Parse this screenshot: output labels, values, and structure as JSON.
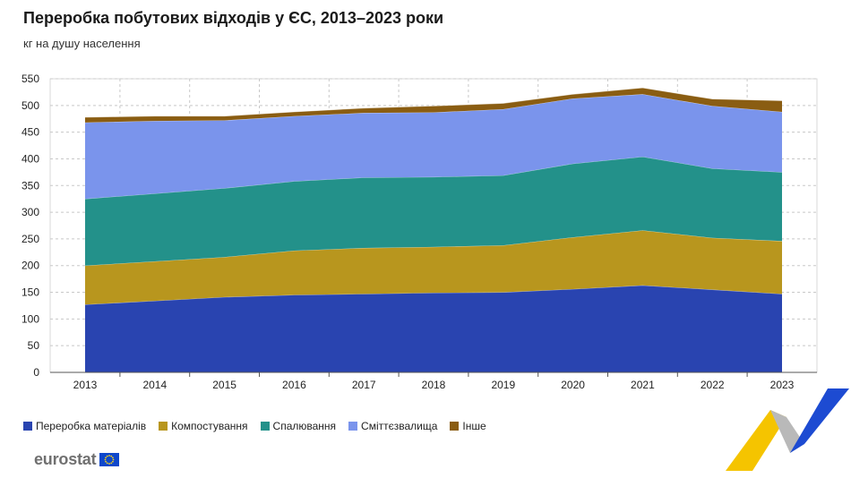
{
  "title": "Переробка побутових відходів у ЄС, 2013–2023 роки",
  "subtitle": "кг на душу населення",
  "brand": {
    "name": "eurostat",
    "logo_icon": "eu-flag-icon"
  },
  "chart_data": {
    "type": "area",
    "stacked": true,
    "title": "Переробка побутових відходів у ЄС, 2013–2023 роки",
    "ylabel": "кг на душу населення",
    "xlabel": "",
    "categories": [
      "2013",
      "2014",
      "2015",
      "2016",
      "2017",
      "2018",
      "2019",
      "2020",
      "2021",
      "2022",
      "2023"
    ],
    "ylim": [
      0,
      550
    ],
    "yticks": [
      0,
      50,
      100,
      150,
      200,
      250,
      300,
      350,
      400,
      450,
      500,
      550
    ],
    "grid": true,
    "legend_position": "bottom-left",
    "series": [
      {
        "name": "Переробка матеріалів",
        "color": "#2944b0",
        "values": [
          127,
          134,
          141,
          145,
          147,
          149,
          150,
          156,
          163,
          155,
          147
        ]
      },
      {
        "name": "Компостування",
        "color": "#b8961e",
        "values": [
          73,
          74,
          75,
          83,
          86,
          86,
          88,
          97,
          103,
          97,
          99
        ]
      },
      {
        "name": "Спалювання",
        "color": "#23918a",
        "values": [
          125,
          127,
          129,
          130,
          132,
          131,
          131,
          138,
          138,
          130,
          129
        ]
      },
      {
        "name": "Сміттєзвалища",
        "color": "#7a94ec",
        "values": [
          143,
          136,
          127,
          122,
          121,
          121,
          124,
          122,
          117,
          117,
          113
        ]
      },
      {
        "name": "Інше",
        "color": "#8a5d12",
        "values": [
          10,
          9,
          8,
          8,
          9,
          12,
          11,
          8,
          12,
          13,
          21
        ]
      }
    ]
  }
}
